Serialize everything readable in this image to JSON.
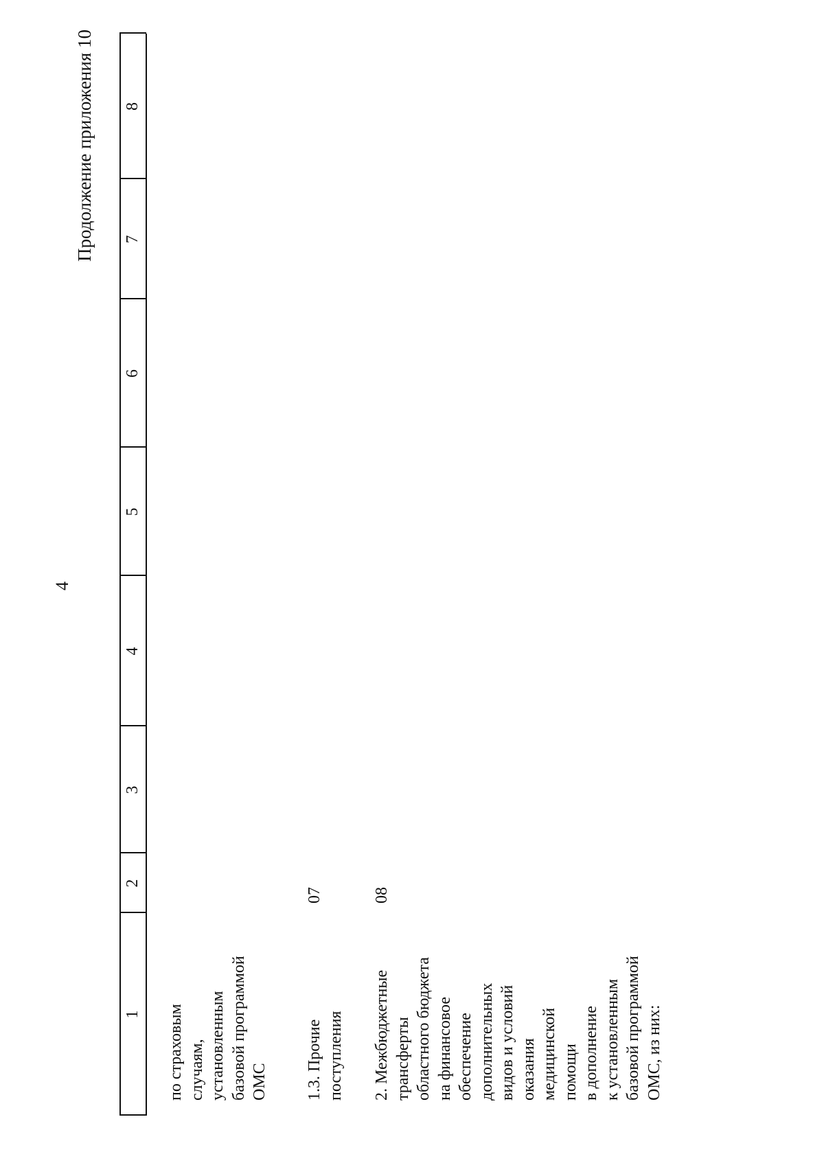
{
  "header": {
    "page_number": "4",
    "continuation": "Продолжение приложения 10"
  },
  "table": {
    "column_numbers": [
      "1",
      "2",
      "3",
      "4",
      "5",
      "6",
      "7",
      "8"
    ],
    "rows": [
      {
        "name_lines": [
          "по страховым",
          "случаям,",
          "установленным",
          "базовой программой",
          "ОМС"
        ]
      },
      {
        "name_lines": [
          "1.3. Прочие",
          "поступления"
        ],
        "code": "07"
      },
      {
        "name_lines": [
          "2. Межбюджетные",
          "трансферты",
          "областного бюджета",
          "на финансовое",
          "обеспечение",
          "дополнительных",
          "видов и условий",
          "оказания",
          "медицинской",
          "помощи",
          "в дополнение",
          "к установленным",
          "базовой программой",
          "ОМС, из них:"
        ],
        "code": "08"
      }
    ]
  }
}
